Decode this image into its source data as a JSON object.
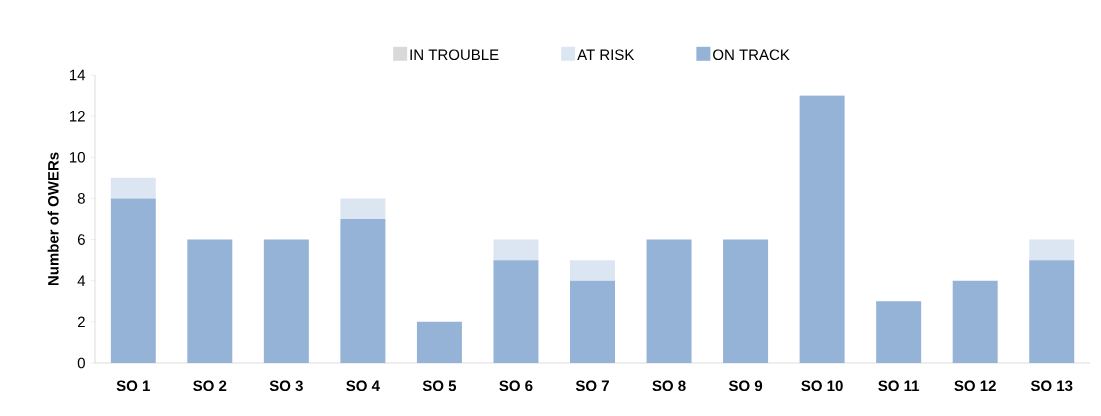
{
  "chart_data": {
    "type": "bar",
    "stacked": true,
    "ylabel": "Number of OWERs",
    "categories": [
      "SO 1",
      "SO 2",
      "SO 3",
      "SO 4",
      "SO 5",
      "SO 6",
      "SO 7",
      "SO 8",
      "SO 9",
      "SO 10",
      "SO 11",
      "SO 12",
      "SO 13"
    ],
    "series": [
      {
        "name": "ON TRACK",
        "color": "#95b3d7",
        "values": [
          8,
          6,
          6,
          7,
          2,
          5,
          4,
          6,
          6,
          13,
          3,
          4,
          5
        ]
      },
      {
        "name": "AT RISK",
        "color": "#dce6f2",
        "values": [
          1,
          0,
          0,
          1,
          0,
          1,
          1,
          0,
          0,
          0,
          0,
          0,
          1
        ]
      },
      {
        "name": "IN TROUBLE",
        "color": "#d9d9d9",
        "values": [
          0,
          0,
          0,
          0,
          0,
          0,
          0,
          0,
          0,
          0,
          0,
          0,
          0
        ]
      }
    ],
    "ylim": [
      0,
      14
    ],
    "yticks": [
      0,
      2,
      4,
      6,
      8,
      10,
      12,
      14
    ],
    "legend": "top"
  }
}
